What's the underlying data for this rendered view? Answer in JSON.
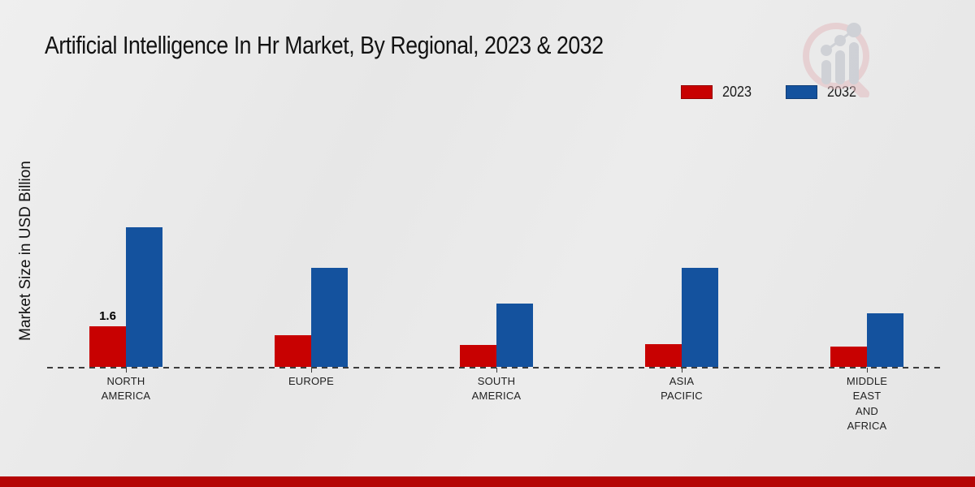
{
  "title": "Artificial Intelligence In Hr Market, By Regional, 2023 & 2032",
  "y_axis_label": "Market Size in USD Billion",
  "legend": [
    {
      "label": "2023",
      "color": "#c80101"
    },
    {
      "label": "2032",
      "color": "#14529e"
    }
  ],
  "chart_data": {
    "type": "bar",
    "title": "Artificial Intelligence In Hr Market, By Regional, 2023 & 2032",
    "xlabel": "",
    "ylabel": "Market Size in USD Billion",
    "categories": [
      "NORTH AMERICA",
      "EUROPE",
      "SOUTH AMERICA",
      "ASIA PACIFIC",
      "MIDDLE EAST AND AFRICA"
    ],
    "category_label_lines": [
      [
        "NORTH",
        "AMERICA"
      ],
      [
        "EUROPE"
      ],
      [
        "SOUTH",
        "AMERICA"
      ],
      [
        "ASIA",
        "PACIFIC"
      ],
      [
        "MIDDLE",
        "EAST",
        "AND",
        "AFRICA"
      ]
    ],
    "series": [
      {
        "name": "2023",
        "color": "#c80101",
        "values": [
          1.6,
          1.25,
          0.85,
          0.9,
          0.8
        ]
      },
      {
        "name": "2032",
        "color": "#14529e",
        "values": [
          5.5,
          3.9,
          2.5,
          3.9,
          2.1
        ]
      }
    ],
    "data_labels": [
      {
        "series": "2023",
        "category": "NORTH AMERICA",
        "text": "1.6"
      }
    ],
    "ylim": [
      0,
      6.4
    ],
    "y_axis_ticks_visible": false,
    "gridlines": false,
    "baseline_style": "dashed",
    "legend_position": "top-right"
  },
  "watermark": {
    "name": "market-research-magnifier-logo"
  },
  "colors": {
    "background": "#e9e9e9",
    "footer_red": "#b50505",
    "axis": "#3c3c3c",
    "title_text": "#121212",
    "label_text": "#1f1f1f"
  }
}
